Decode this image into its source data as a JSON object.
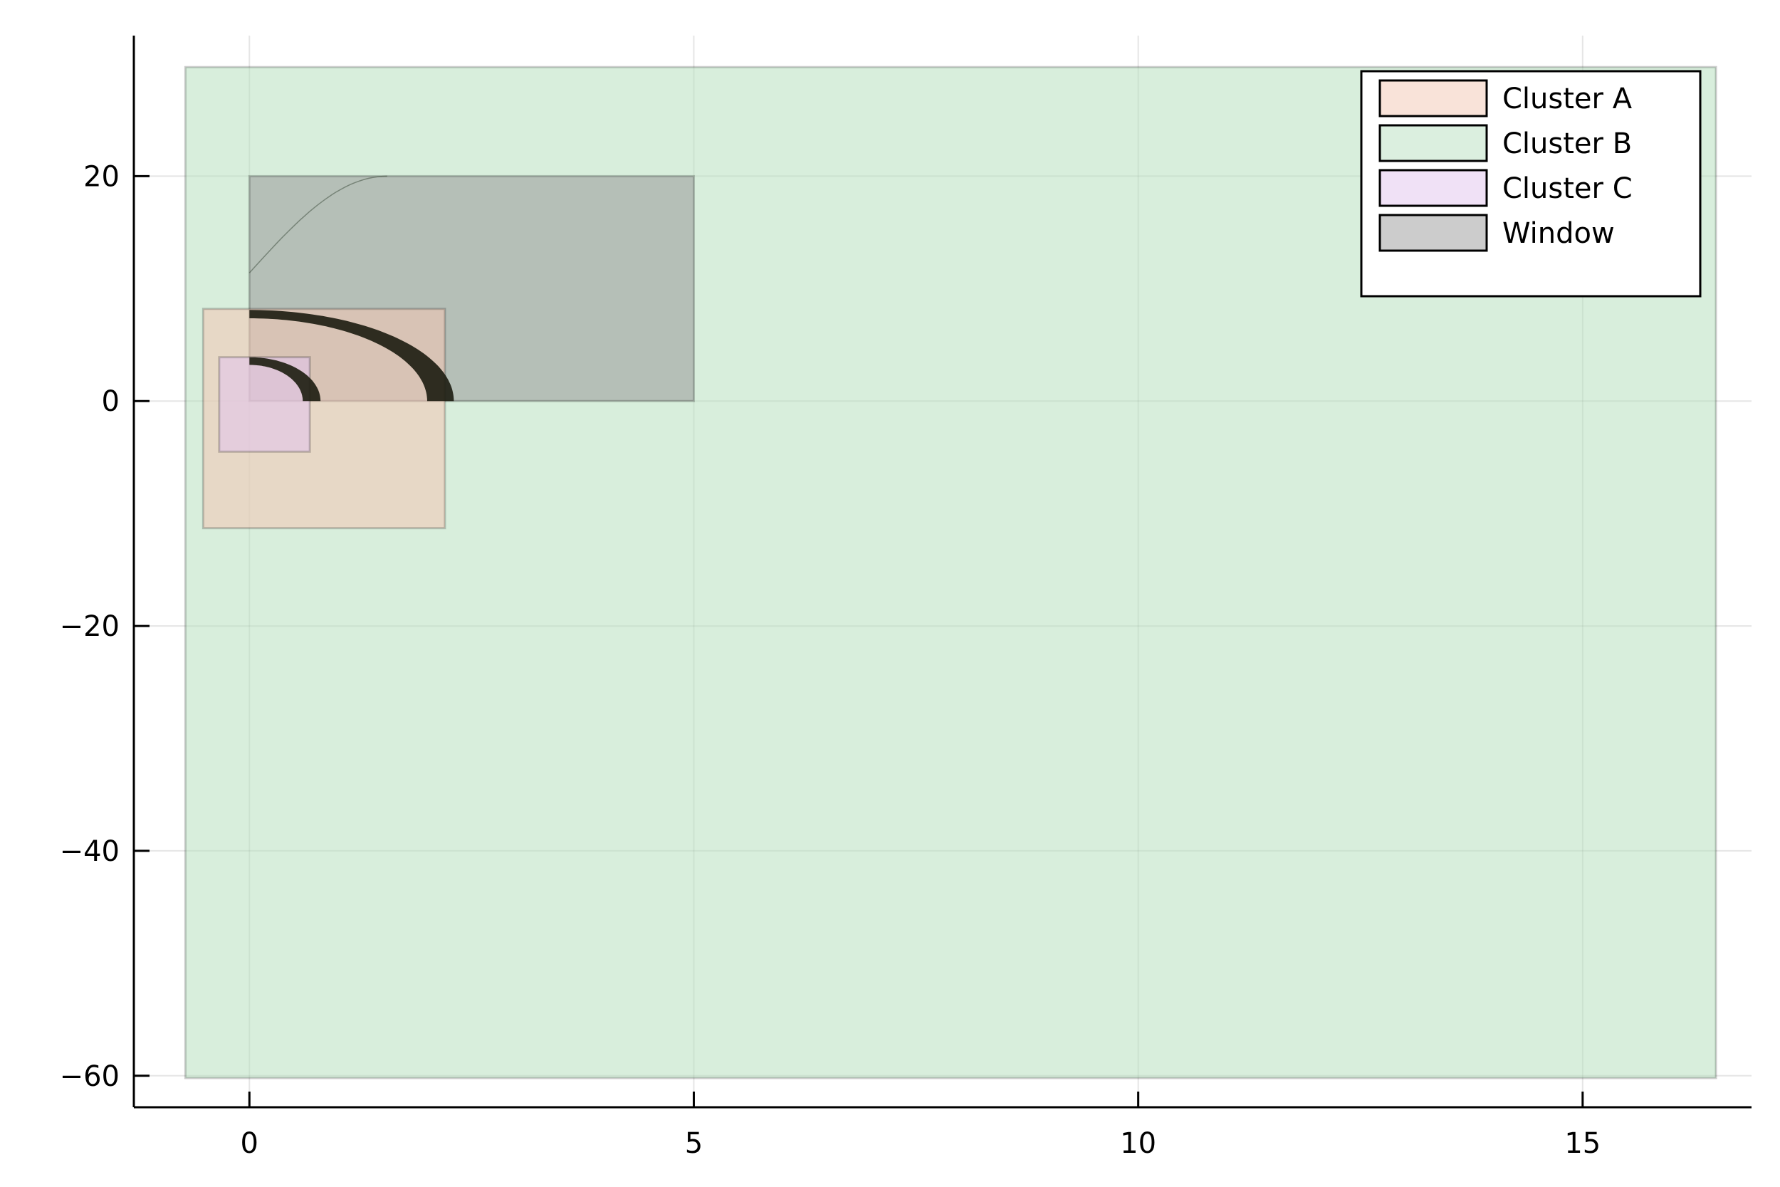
{
  "chart_data": {
    "type": "area",
    "title": "",
    "xlabel": "",
    "ylabel": "",
    "xlim": [
      -1.3,
      16.9
    ],
    "ylim": [
      -62.8,
      32.5
    ],
    "x_ticks": [
      0,
      5,
      10,
      15
    ],
    "y_ticks": [
      -60,
      -40,
      -20,
      0,
      20
    ],
    "x_tick_labels": [
      "0",
      "5",
      "10",
      "15"
    ],
    "y_tick_labels": [
      "−60",
      "−40",
      "−20",
      "0",
      "20"
    ],
    "grid": true,
    "legend_position": "top-right",
    "series": [
      {
        "name": "Cluster A",
        "color": "#f4c7b4",
        "boxes": [
          {
            "x0": -0.52,
            "x1": 2.2,
            "y0": -11.3,
            "y1": 8.2
          }
        ],
        "arcs": [
          {
            "cx": 0.0,
            "cy": 0.0,
            "r_outer": 2.3,
            "r_inner": 2.0,
            "rx_outer": 2.3,
            "ry_outer": 8.1
          }
        ]
      },
      {
        "name": "Cluster B",
        "color": "#b8e0c0",
        "boxes": [
          {
            "x0": -0.72,
            "x1": 16.5,
            "y0": -60.2,
            "y1": 29.7
          }
        ],
        "arcs": []
      },
      {
        "name": "Cluster C",
        "color": "#e2c4ee",
        "boxes": [
          {
            "x0": -0.34,
            "x1": 0.68,
            "y0": -4.5,
            "y1": 3.9
          }
        ],
        "arcs": [
          {
            "cx": 0.0,
            "cy": 0.0,
            "r_outer": 0.8,
            "r_inner": 0.6,
            "rx_outer": 0.8,
            "ry_outer": 3.9
          }
        ]
      },
      {
        "name": "Window",
        "color": "#999999",
        "boxes": [
          {
            "x0": 0.0,
            "x1": 5.0,
            "y0": 0.0,
            "y1": 20.0
          }
        ],
        "arcs": []
      }
    ]
  }
}
